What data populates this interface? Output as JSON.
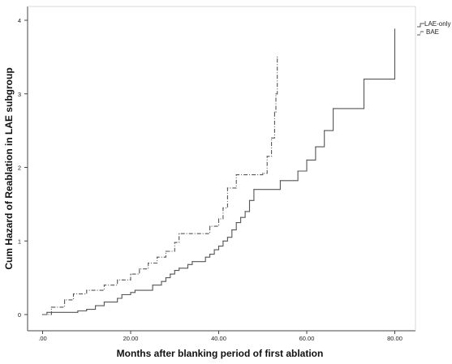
{
  "chart_data": {
    "type": "line",
    "step": true,
    "xlabel": "Months after blanking period of first ablation",
    "ylabel": "Cum Hazard of Reablation in LAE subgroup",
    "xlim": [
      -3,
      84
    ],
    "ylim": [
      -0.2,
      4.1
    ],
    "xticks": [
      0,
      20,
      40,
      60,
      80
    ],
    "xtick_labels": [
      ".00",
      "20.00",
      "40.00",
      "60.00",
      "80.00"
    ],
    "yticks": [
      0,
      1,
      2,
      3,
      4
    ],
    "ytick_labels": [
      "0",
      "1",
      "2",
      "3",
      "4"
    ],
    "grid": false,
    "legend_position": "top-right",
    "series": [
      {
        "name": "LAE-only",
        "style": "solid",
        "color": "#555555",
        "points": [
          [
            0,
            0
          ],
          [
            1,
            0.03
          ],
          [
            8,
            0.05
          ],
          [
            10,
            0.07
          ],
          [
            12,
            0.12
          ],
          [
            14,
            0.17
          ],
          [
            17,
            0.22
          ],
          [
            18,
            0.27
          ],
          [
            20,
            0.3
          ],
          [
            21,
            0.33
          ],
          [
            25,
            0.4
          ],
          [
            27,
            0.45
          ],
          [
            28,
            0.5
          ],
          [
            29,
            0.55
          ],
          [
            30,
            0.6
          ],
          [
            31,
            0.63
          ],
          [
            33,
            0.68
          ],
          [
            34,
            0.72
          ],
          [
            37,
            0.78
          ],
          [
            38,
            0.82
          ],
          [
            39,
            0.88
          ],
          [
            40,
            0.93
          ],
          [
            41,
            1.0
          ],
          [
            42,
            1.05
          ],
          [
            43,
            1.15
          ],
          [
            44,
            1.25
          ],
          [
            45,
            1.32
          ],
          [
            46,
            1.4
          ],
          [
            47,
            1.55
          ],
          [
            48,
            1.7
          ],
          [
            54,
            1.82
          ],
          [
            58,
            1.95
          ],
          [
            60,
            2.1
          ],
          [
            62,
            2.28
          ],
          [
            64,
            2.5
          ],
          [
            66,
            2.8
          ],
          [
            73,
            3.2
          ],
          [
            80,
            3.88
          ]
        ]
      },
      {
        "name": "BAE",
        "style": "dash-dot",
        "color": "#555555",
        "points": [
          [
            0,
            0
          ],
          [
            2,
            0.1
          ],
          [
            5,
            0.2
          ],
          [
            7,
            0.28
          ],
          [
            10,
            0.33
          ],
          [
            14,
            0.4
          ],
          [
            17,
            0.47
          ],
          [
            20,
            0.55
          ],
          [
            22,
            0.62
          ],
          [
            24,
            0.7
          ],
          [
            26,
            0.78
          ],
          [
            28,
            0.86
          ],
          [
            30,
            0.98
          ],
          [
            31,
            1.1
          ],
          [
            38,
            1.2
          ],
          [
            40,
            1.3
          ],
          [
            41,
            1.45
          ],
          [
            42,
            1.72
          ],
          [
            44,
            1.9
          ],
          [
            50,
            1.92
          ],
          [
            51,
            2.15
          ],
          [
            52,
            2.4
          ],
          [
            52.7,
            2.75
          ],
          [
            53,
            3.0
          ],
          [
            53.3,
            3.5
          ]
        ]
      }
    ]
  }
}
